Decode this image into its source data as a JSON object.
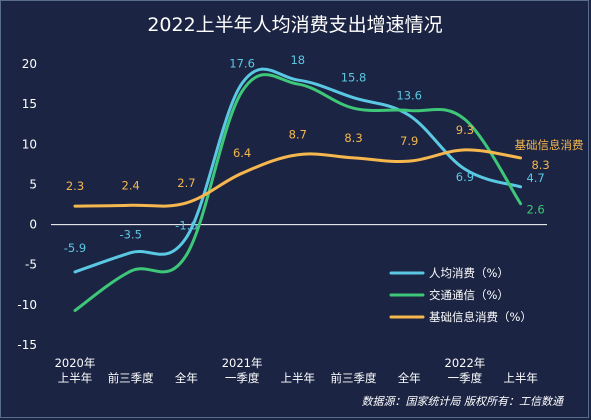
{
  "chart_data": {
    "type": "line",
    "title": "2022上半年人均消费支出增速情况",
    "categories": [
      [
        "2020年",
        "上半年"
      ],
      [
        "前三季度"
      ],
      [
        "全年"
      ],
      [
        "2021年",
        "一季度"
      ],
      [
        "上半年"
      ],
      [
        "前三季度"
      ],
      [
        "全年"
      ],
      [
        "2022年",
        "一季度"
      ],
      [
        "上半年"
      ]
    ],
    "ylim": [
      -15,
      20
    ],
    "yticks": [
      -15,
      -10,
      -5,
      0,
      5,
      10,
      15,
      20
    ],
    "series": [
      {
        "name": "人均消费（%）",
        "color": "#5bc8e3",
        "values": [
          -5.9,
          -3.5,
          -1.6,
          17.6,
          18,
          15.8,
          13.6,
          6.9,
          4.7
        ],
        "labels": [
          "-5.9",
          "-3.5",
          "-1.6",
          "17.6",
          "18",
          "15.8",
          "13.6",
          "6.9",
          "4.7"
        ]
      },
      {
        "name": "交通通信（%）",
        "color": "#3ec778",
        "values": [
          -10.7,
          -5.8,
          -3.8,
          16.6,
          17.5,
          14.5,
          14.2,
          13.1,
          2.6
        ],
        "labels": [
          "",
          "",
          "",
          "",
          "",
          "",
          "",
          "",
          "2.6"
        ]
      },
      {
        "name": "基础信息消费（%）",
        "color": "#f5b74e",
        "values": [
          2.3,
          2.4,
          2.7,
          6.4,
          8.7,
          8.3,
          7.9,
          9.3,
          8.3
        ],
        "labels": [
          "2.3",
          "2.4",
          "2.7",
          "6.4",
          "8.7",
          "8.3",
          "7.9",
          "9.3",
          "8.3"
        ]
      }
    ],
    "annotation": "基础信息消费",
    "grid": false,
    "legend": "bottom-right",
    "source": "数据源：国家统计局      版权所有：工信数通"
  }
}
